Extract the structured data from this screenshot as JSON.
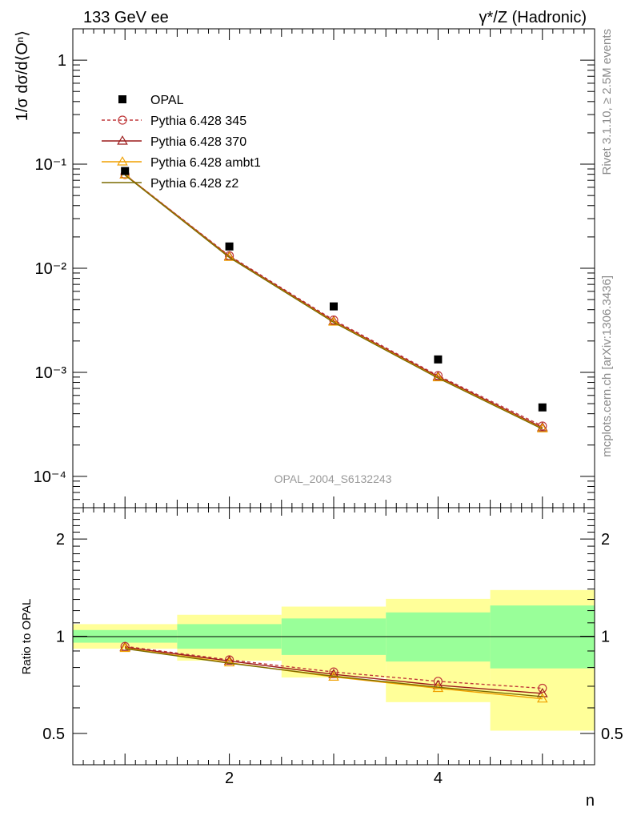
{
  "header": {
    "left": "133 GeV ee",
    "right": "γ*/Z (Hadronic)"
  },
  "side_labels": {
    "rivet": "Rivet 3.1.10, ≥ 2.5M events",
    "mcplots": "mcplots.cern.ch [arXiv:1306.3436]"
  },
  "watermark": "OPAL_2004_S6132243",
  "chart_data": [
    {
      "panel": "main",
      "type": "line",
      "yscale": "log",
      "ylabel": "1/σ dσ/d⟨Oⁿ⟩",
      "xlabel": "n",
      "xlim": [
        0.5,
        5.5
      ],
      "ylim": [
        5e-05,
        2
      ],
      "x_ticks": [
        2,
        4
      ],
      "y_ticks": [
        {
          "value": 1,
          "label": "1"
        },
        {
          "value": 0.1,
          "label": "10⁻¹"
        },
        {
          "value": 0.01,
          "label": "10⁻²"
        },
        {
          "value": 0.001,
          "label": "10⁻³"
        },
        {
          "value": 0.0001,
          "label": "10⁻⁴"
        }
      ],
      "legend_position": "top-left",
      "data": {
        "name": "OPAL",
        "color": "#000000",
        "x": [
          1,
          2,
          3,
          4,
          5
        ],
        "y": [
          0.086,
          0.0162,
          0.0043,
          0.00133,
          0.00046
        ]
      },
      "series": [
        {
          "name": "Pythia 6.428 345",
          "color": "#c0393b",
          "marker": "circle",
          "dash": true,
          "x": [
            1,
            2,
            3,
            4,
            5
          ],
          "y": [
            0.0795,
            0.0132,
            0.00318,
            0.00093,
            0.000305
          ]
        },
        {
          "name": "Pythia 6.428 370",
          "color": "#9b1a1a",
          "marker": "triangle",
          "dash": false,
          "x": [
            1,
            2,
            3,
            4,
            5
          ],
          "y": [
            0.0795,
            0.013,
            0.0031,
            0.00091,
            0.000295
          ]
        },
        {
          "name": "Pythia 6.428 ambt1",
          "color": "#f0a000",
          "marker": "triangle-open",
          "dash": false,
          "x": [
            1,
            2,
            3,
            4,
            5
          ],
          "y": [
            0.079,
            0.0128,
            0.00305,
            0.00089,
            0.000288
          ]
        },
        {
          "name": "Pythia 6.428 z2",
          "color": "#7a6a00",
          "marker": "none",
          "dash": false,
          "x": [
            1,
            2,
            3,
            4,
            5
          ],
          "y": [
            0.0785,
            0.0127,
            0.00302,
            0.00088,
            0.000285
          ]
        }
      ]
    },
    {
      "panel": "ratio",
      "type": "line",
      "yscale": "log",
      "ylabel": "Ratio to OPAL",
      "xlabel": "n",
      "xlim": [
        0.5,
        5.5
      ],
      "ylim": [
        0.4,
        2.5
      ],
      "x_ticks": [
        2,
        4
      ],
      "y_ticks": [
        {
          "value": 0.5,
          "label": "0.5"
        },
        {
          "value": 1,
          "label": "1"
        },
        {
          "value": 2,
          "label": "2"
        }
      ],
      "bands": [
        {
          "x0": 0.5,
          "x1": 1.5,
          "inner": [
            0.955,
            1.045
          ],
          "outer": [
            0.915,
            1.09
          ]
        },
        {
          "x0": 1.5,
          "x1": 2.5,
          "inner": [
            0.915,
            1.09
          ],
          "outer": [
            0.84,
            1.165
          ]
        },
        {
          "x0": 2.5,
          "x1": 3.5,
          "inner": [
            0.875,
            1.135
          ],
          "outer": [
            0.745,
            1.235
          ]
        },
        {
          "x0": 3.5,
          "x1": 4.5,
          "inner": [
            0.835,
            1.185
          ],
          "outer": [
            0.625,
            1.305
          ]
        },
        {
          "x0": 4.5,
          "x1": 5.5,
          "inner": [
            0.795,
            1.245
          ],
          "outer": [
            0.51,
            1.39
          ]
        }
      ],
      "series": [
        {
          "name": "Pythia 6.428 345",
          "color": "#c0393b",
          "marker": "circle",
          "dash": true,
          "x": [
            1,
            2,
            3,
            4,
            5
          ],
          "y": [
            0.93,
            0.845,
            0.775,
            0.725,
            0.69
          ]
        },
        {
          "name": "Pythia 6.428 370",
          "color": "#9b1a1a",
          "marker": "triangle",
          "dash": false,
          "x": [
            1,
            2,
            3,
            4,
            5
          ],
          "y": [
            0.925,
            0.838,
            0.762,
            0.705,
            0.665
          ]
        },
        {
          "name": "Pythia 6.428 ambt1",
          "color": "#f0a000",
          "marker": "triangle-open",
          "dash": false,
          "x": [
            1,
            2,
            3,
            4,
            5
          ],
          "y": [
            0.918,
            0.828,
            0.748,
            0.69,
            0.64
          ]
        },
        {
          "name": "Pythia 6.428 z2",
          "color": "#7a6a00",
          "marker": "none",
          "dash": false,
          "x": [
            1,
            2,
            3,
            4,
            5
          ],
          "y": [
            0.915,
            0.825,
            0.752,
            0.695,
            0.65
          ]
        }
      ]
    }
  ]
}
